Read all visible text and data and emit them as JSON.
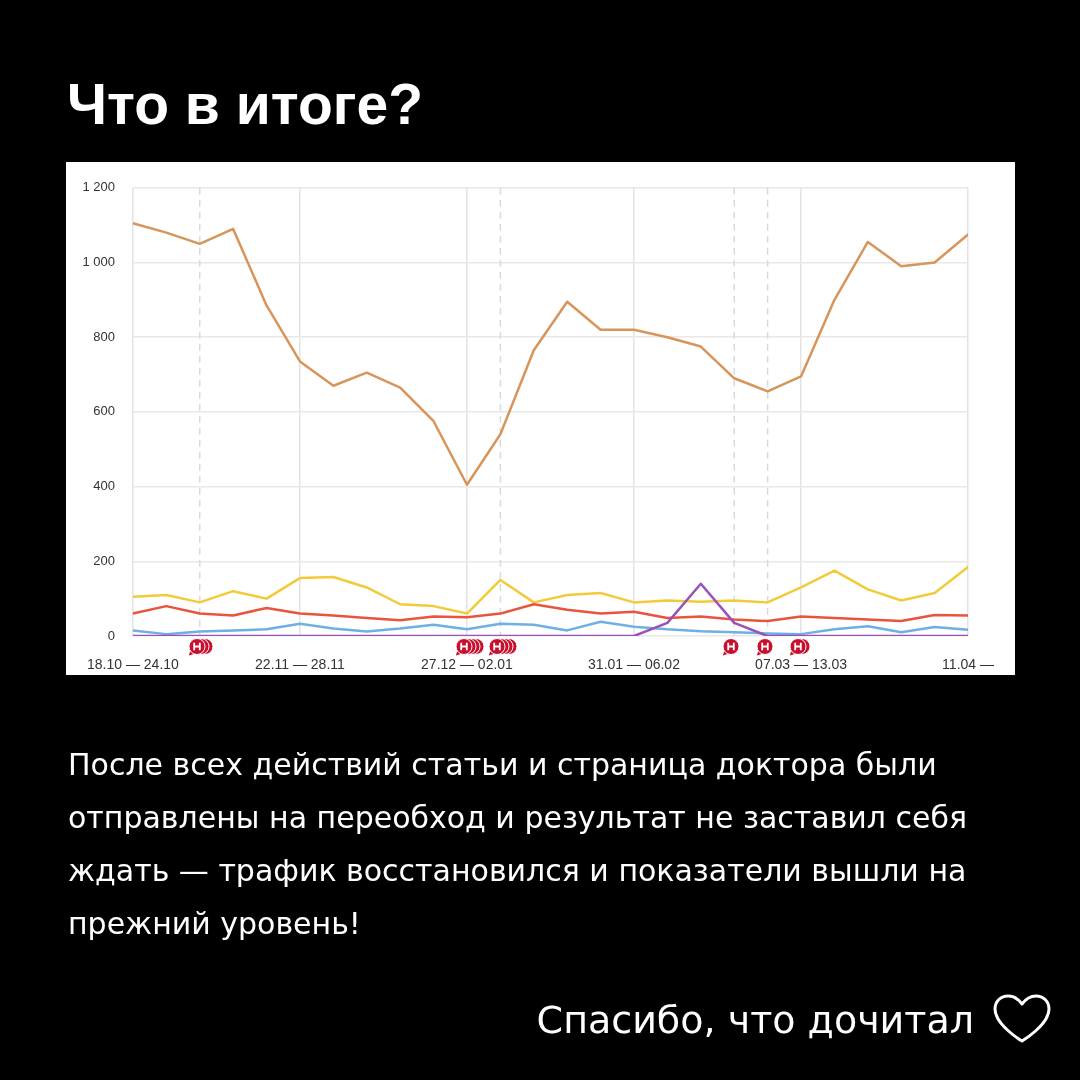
{
  "chart_data": {
    "type": "line",
    "title": "Что в итоге?",
    "categories": [
      "18.10 — 24.10",
      null,
      null,
      null,
      null,
      "22.11 — 28.11",
      null,
      null,
      null,
      null,
      "27.12 — 02.01",
      null,
      null,
      null,
      null,
      "31.01 — 06.02",
      null,
      null,
      null,
      null,
      "07.03 — 13.03",
      null,
      null,
      null,
      null,
      "11.04 —"
    ],
    "series": [
      {
        "color": "#d8955b",
        "values": [
          1105,
          1080,
          1050,
          1090,
          885,
          735,
          670,
          705,
          665,
          575,
          405,
          540,
          765,
          895,
          820,
          820,
          800,
          775,
          690,
          655,
          695,
          900,
          1055,
          990,
          1000,
          1075
        ]
      },
      {
        "color": "#f2cb3a",
        "values": [
          105,
          110,
          90,
          120,
          100,
          155,
          158,
          130,
          85,
          80,
          60,
          150,
          90,
          110,
          115,
          90,
          95,
          92,
          95,
          90,
          130,
          175,
          125,
          95,
          115,
          185
        ]
      },
      {
        "color": "#e8553d",
        "values": [
          60,
          80,
          60,
          55,
          75,
          60,
          55,
          48,
          42,
          52,
          50,
          60,
          85,
          70,
          60,
          65,
          48,
          52,
          44,
          40,
          52,
          48,
          44,
          40,
          56,
          55
        ]
      },
      {
        "color": "#6eb0e3",
        "values": [
          15,
          5,
          12,
          15,
          18,
          33,
          20,
          12,
          20,
          30,
          18,
          33,
          30,
          15,
          38,
          25,
          18,
          13,
          10,
          7,
          5,
          18,
          26,
          10,
          24,
          17
        ]
      },
      {
        "color": "#9a52b8",
        "values": [
          0,
          0,
          0,
          0,
          0,
          0,
          0,
          0,
          0,
          0,
          0,
          0,
          0,
          0,
          0,
          0,
          35,
          140,
          35,
          0,
          0,
          0,
          0,
          0,
          0,
          0
        ]
      }
    ],
    "ylim": [
      0,
      1200
    ],
    "yticks": [
      0,
      200,
      400,
      600,
      800,
      {
        "value": 1000,
        "label": "1 000"
      },
      {
        "value": 1200,
        "label": "1 200"
      }
    ],
    "grid": true,
    "marker": "none",
    "line_style": "solid",
    "annotations": [
      "После всех действий статьи и страница доктора были отправлены на переобход и результат не заставил себя ждать — трафик восстановился и показатели вышли на прежний уровень!",
      "Спасибо, что дочитал"
    ]
  }
}
